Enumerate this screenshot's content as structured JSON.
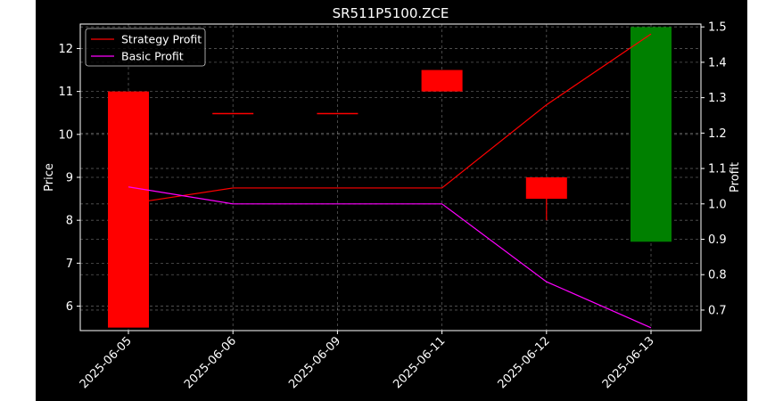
{
  "chart_data": {
    "type": "candlestick",
    "title": "SR511P5100.ZCE",
    "xlabel": "",
    "ylabel": "Price",
    "y2label": "Profit",
    "categories": [
      "2025-06-05",
      "2025-06-06",
      "2025-06-09",
      "2025-06-11",
      "2025-06-12",
      "2025-06-13"
    ],
    "candles": [
      {
        "open": 5.5,
        "close": 11.0,
        "high": 11.0,
        "low": 5.5,
        "color": "#ff0000"
      },
      {
        "open": 10.5,
        "close": 10.5,
        "high": 10.5,
        "low": 10.5,
        "color": "#ff0000"
      },
      {
        "open": 10.5,
        "close": 10.5,
        "high": 10.5,
        "low": 10.5,
        "color": "#ff0000"
      },
      {
        "open": 11.0,
        "close": 11.5,
        "high": 11.5,
        "low": 11.0,
        "color": "#ff0000"
      },
      {
        "open": 8.5,
        "close": 9.0,
        "high": 9.0,
        "low": 8.0,
        "color": "#ff0000"
      },
      {
        "open": 7.5,
        "close": 12.5,
        "high": 12.5,
        "low": 7.5,
        "color": "#008000"
      }
    ],
    "series": [
      {
        "name": "Strategy Profit",
        "color": "#ff0000",
        "axis": "right",
        "values": [
          1.0,
          1.045,
          1.045,
          1.045,
          1.28,
          1.48
        ]
      },
      {
        "name": "Basic Profit",
        "color": "#ff00ff",
        "axis": "right",
        "values": [
          1.048,
          1.0,
          1.0,
          1.0,
          0.78,
          0.65
        ]
      }
    ],
    "ylim": [
      5.43,
      12.57
    ],
    "y2lim": [
      0.642,
      1.508
    ],
    "yticks": [
      6,
      7,
      8,
      9,
      10,
      11,
      12
    ],
    "y2ticks": [
      0.7,
      0.8,
      0.9,
      1.0,
      1.1,
      1.2,
      1.3,
      1.4,
      1.5
    ],
    "grid": true,
    "legend": "top-left"
  }
}
